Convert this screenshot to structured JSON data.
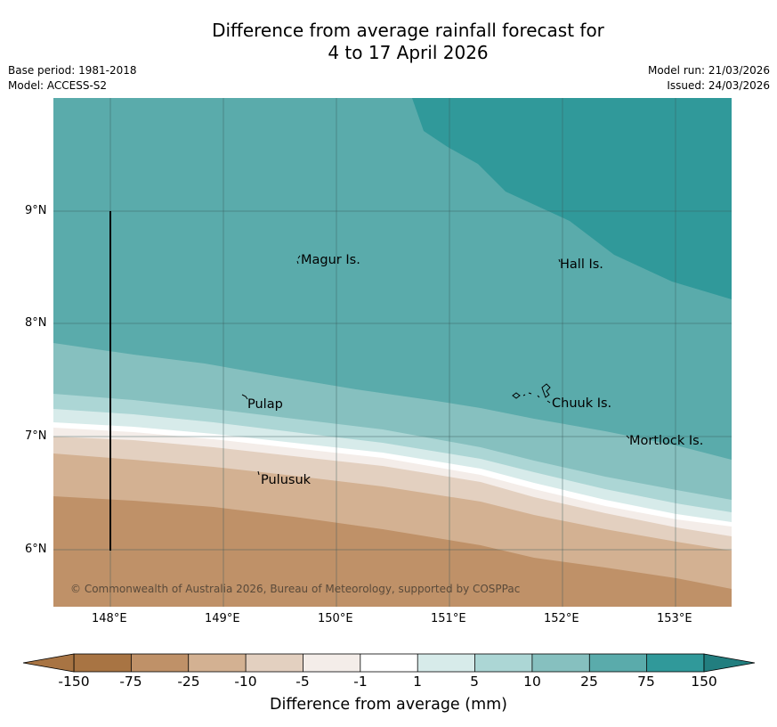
{
  "title": {
    "line1": "Difference from average rainfall forecast for",
    "line2": "4 to 17 April 2026"
  },
  "meta": {
    "base_period": "Base period: 1981-2018",
    "model": "Model: ACCESS-S2",
    "model_run": "Model run: 21/03/2026",
    "issued": "Issued: 24/03/2026"
  },
  "map": {
    "lat_labels": [
      "9°N",
      "8°N",
      "7°N",
      "6°N"
    ],
    "lon_labels": [
      "148°E",
      "149°E",
      "150°E",
      "151°E",
      "152°E",
      "153°E"
    ],
    "places": {
      "magur": "Magur Is.",
      "hall": "Hall Is.",
      "pulap": "Pulap",
      "chuuk": "Chuuk Is.",
      "mortlock": "Mortlock Is.",
      "pulusuk": "Pulusuk"
    },
    "copyright": "© Commonwealth of Australia 2026, Bureau of Meteorology, supported by COSPPac"
  },
  "colorbar": {
    "labels": [
      "-150",
      "-75",
      "-25",
      "-10",
      "-5",
      "-1",
      "1",
      "5",
      "10",
      "25",
      "75",
      "150"
    ],
    "colors": [
      "#a87443",
      "#bf9168",
      "#d3b192",
      "#e3d0c0",
      "#f4ede9",
      "#ffffff",
      "#d7ebea",
      "#acd6d5",
      "#86c0bf",
      "#5aabab",
      "#30999a"
    ],
    "under_color": "#a87443",
    "over_color": "#227e7f",
    "title": "Difference from average (mm)"
  }
}
